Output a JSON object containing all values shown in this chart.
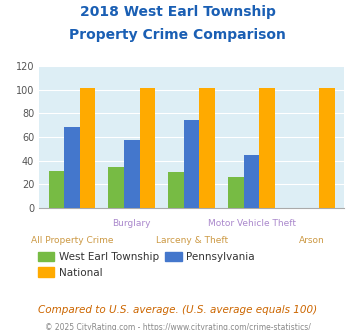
{
  "title_line1": "2018 West Earl Township",
  "title_line2": "Property Crime Comparison",
  "west_earl": [
    31,
    35,
    30,
    26,
    0
  ],
  "pennsylvania": [
    68,
    57,
    74,
    45,
    0
  ],
  "national": [
    101,
    101,
    101,
    101,
    101
  ],
  "bar_colors": {
    "west_earl": "#77bb44",
    "pennsylvania": "#4477cc",
    "national": "#ffaa00"
  },
  "ylim": [
    0,
    120
  ],
  "yticks": [
    0,
    20,
    40,
    60,
    80,
    100,
    120
  ],
  "title_color": "#1a5fb4",
  "plot_bg": "#ddeef5",
  "fig_bg": "#ffffff",
  "grid_color": "#ffffff",
  "footnote1": "Compared to U.S. average. (U.S. average equals 100)",
  "footnote2": "© 2025 CityRating.com - https://www.cityrating.com/crime-statistics/",
  "footnote1_color": "#cc6600",
  "footnote2_color": "#888888",
  "x_top_labels": [
    "",
    "Burglary",
    "",
    "Motor Vehicle Theft",
    ""
  ],
  "x_bot_labels": [
    "All Property Crime",
    "",
    "Larceny & Theft",
    "",
    "Arson"
  ],
  "x_top_color": "#aa88cc",
  "x_bot_color": "#cc9944"
}
